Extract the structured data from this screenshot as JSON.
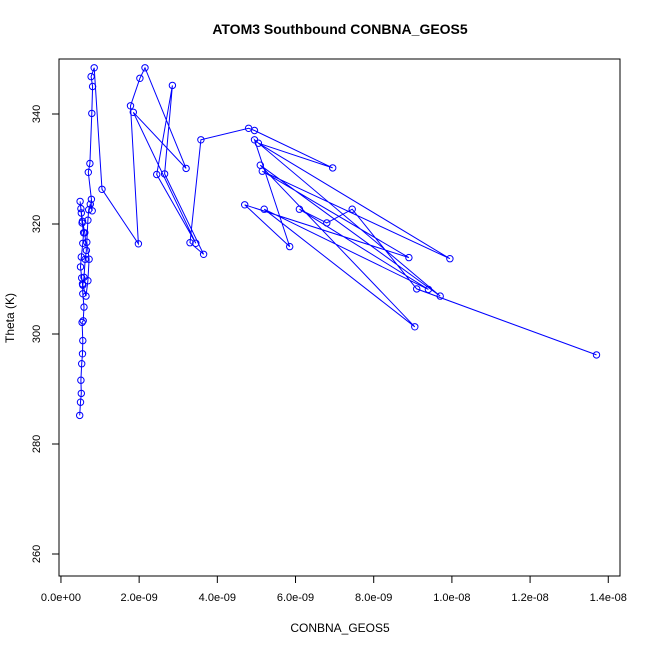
{
  "chart_data": {
    "type": "line",
    "title": "ATOM3 Southbound CONBNA_GEOS5",
    "xlabel": "CONBNA_GEOS5",
    "ylabel": "Theta (K)",
    "xlim": [
      -5e-11,
      1.43e-08
    ],
    "ylim": [
      256,
      350
    ],
    "xticks": [
      0,
      2e-09,
      4e-09,
      6e-09,
      8e-09,
      1e-08,
      1.2e-08,
      1.4e-08
    ],
    "xtick_labels": [
      "0.0e+00",
      "2.0e-09",
      "4.0e-09",
      "6.0e-09",
      "8.0e-09",
      "1.0e-08",
      "1.2e-08",
      "1.4e-08"
    ],
    "yticks": [
      260,
      280,
      300,
      320,
      340
    ],
    "ytick_labels": [
      "260",
      "280",
      "300",
      "320",
      "340"
    ],
    "grid": false,
    "markers": "open-circle",
    "color": "#0000ff",
    "series": [
      {
        "x": [
          4.8e-10,
          5e-10,
          5.2e-10,
          5.1e-10,
          5.3e-10,
          5.5e-10,
          5.6e-10,
          5.4e-10,
          5.7e-10,
          5.9e-10,
          5.6e-10,
          5.5e-10,
          5.3e-10,
          5e-10,
          5.2e-10,
          5.6e-10,
          5.8e-10,
          5.4e-10,
          5.2e-10,
          4.9e-10,
          5.1e-10,
          5.5e-10,
          6.1e-10,
          6.5e-10,
          6.2e-10,
          5.9e-10,
          5.6e-10,
          6.4e-10,
          6.9e-10,
          7.2e-10,
          6.6e-10,
          6.9e-10,
          7.1e-10,
          7.5e-10,
          8e-10,
          7.8e-10,
          7e-10,
          7.4e-10,
          7.9e-10,
          8.1e-10,
          7.7e-10,
          8.5e-10,
          1.05e-09,
          1.98e-09,
          1.78e-09,
          2.02e-09,
          2.15e-09,
          3.2e-09,
          1.85e-09,
          3.45e-09,
          2.45e-09,
          2.85e-09,
          2.65e-09,
          3.65e-09,
          3.3e-09,
          3.58e-09,
          4.8e-09,
          4.95e-09,
          6.95e-09,
          5.05e-09,
          9.95e-09,
          5.15e-09,
          8.9e-09,
          4.7e-09,
          5.85e-09,
          4.95e-09,
          9.7e-09,
          5.1e-09,
          9.05e-09,
          5.2e-09,
          9.4e-09,
          6.1e-09,
          6.8e-09,
          7.45e-09,
          9.1e-09,
          1.37e-08
        ],
        "y": [
          285.2,
          287.6,
          289.2,
          291.6,
          294.6,
          296.4,
          298.8,
          302.1,
          302.4,
          304.9,
          307.3,
          309.1,
          310.2,
          312.2,
          314.0,
          316.5,
          318.4,
          320.2,
          322.0,
          324.1,
          322.8,
          320.5,
          318.4,
          315.2,
          313.6,
          310.3,
          308.9,
          306.9,
          309.7,
          313.6,
          316.7,
          320.7,
          322.6,
          323.6,
          322.4,
          324.5,
          329.4,
          331.0,
          340.1,
          345.0,
          346.8,
          348.4,
          326.3,
          316.4,
          341.5,
          346.5,
          348.4,
          330.1,
          340.3,
          316.5,
          329.0,
          345.2,
          329.1,
          314.5,
          316.6,
          335.3,
          337.4,
          337.0,
          330.2,
          334.7,
          313.7,
          329.6,
          313.9,
          323.5,
          315.9,
          335.3,
          306.9,
          330.7,
          301.3,
          322.7,
          308.1,
          322.7,
          320.2,
          322.7,
          308.2,
          296.2
        ]
      }
    ]
  }
}
